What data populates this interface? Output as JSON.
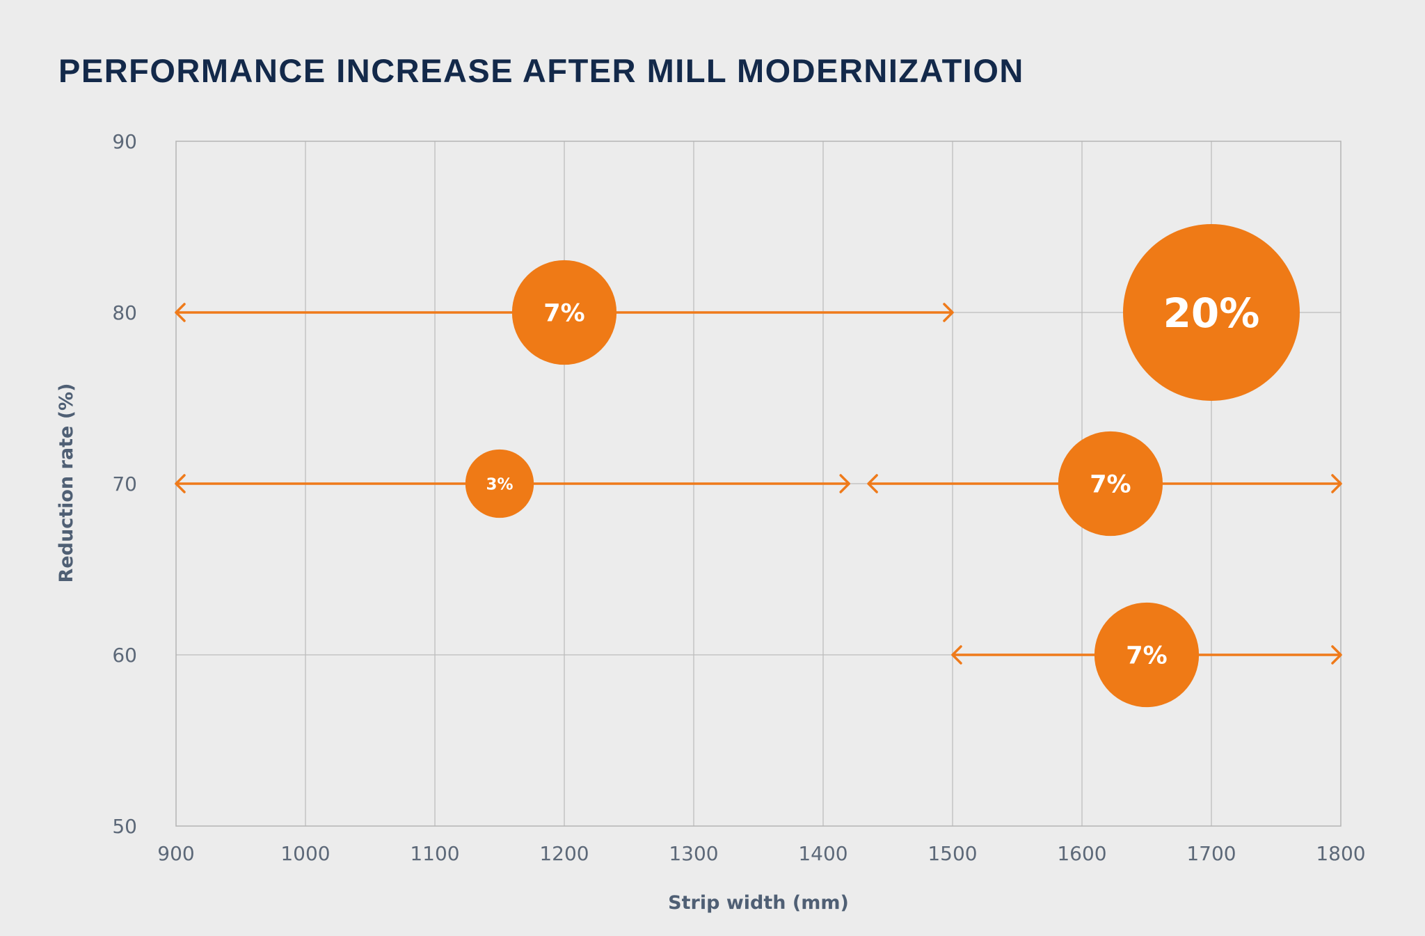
{
  "chart_data": {
    "type": "bubble-range",
    "title": "PERFORMANCE INCREASE AFTER MILL MODERNIZATION",
    "xlabel": "Strip width (mm)",
    "ylabel": "Reduction rate (%)",
    "xlim": [
      900,
      1800
    ],
    "ylim": [
      50,
      90
    ],
    "x_ticks": [
      900,
      1000,
      1100,
      1200,
      1300,
      1400,
      1500,
      1600,
      1700,
      1800
    ],
    "y_ticks": [
      50,
      60,
      70,
      80,
      90
    ],
    "grid": true,
    "colors": {
      "accent": "#ef7a16",
      "title": "#13294a",
      "tick": "#5c6878",
      "axis_label": "#4f5f74",
      "grid": "#bdbdbd",
      "background": "#ececec"
    },
    "points": [
      {
        "x_range": [
          900,
          1500
        ],
        "bubble_x": 1200,
        "y": 80,
        "value": 7,
        "label": "7%"
      },
      {
        "x_range": null,
        "bubble_x": 1700,
        "y": 80,
        "value": 20,
        "label": "20%"
      },
      {
        "x_range": [
          900,
          1420
        ],
        "bubble_x": 1150,
        "y": 70,
        "value": 3,
        "label": "3%"
      },
      {
        "x_range": [
          1435,
          1800
        ],
        "bubble_x": 1622,
        "y": 70,
        "value": 7,
        "label": "7%"
      },
      {
        "x_range": [
          1500,
          1800
        ],
        "bubble_x": 1650,
        "y": 60,
        "value": 7,
        "label": "7%"
      }
    ]
  }
}
